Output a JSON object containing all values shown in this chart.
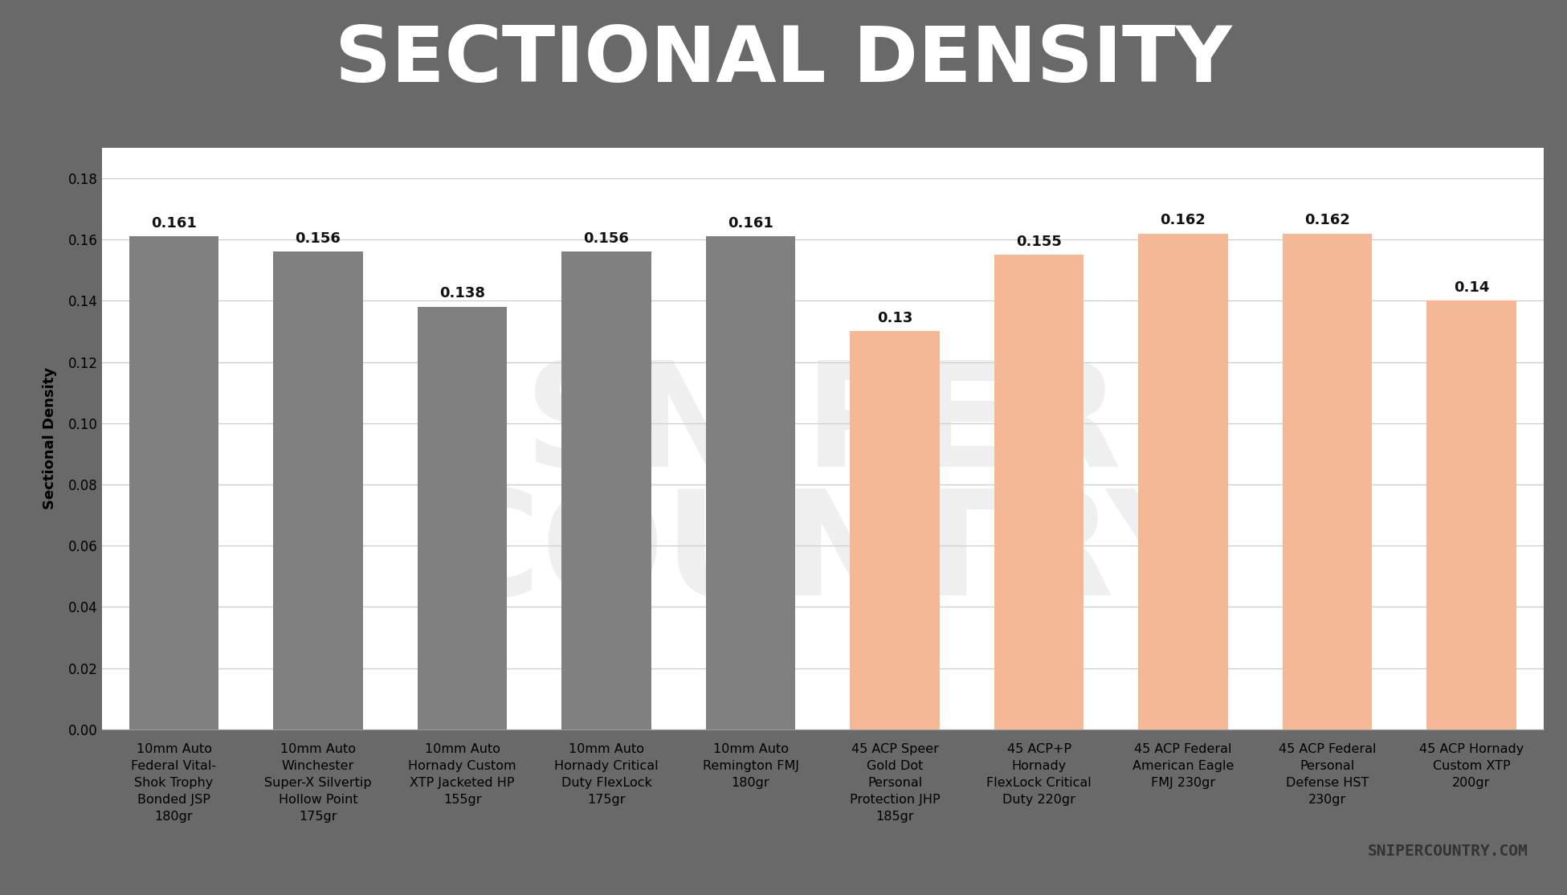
{
  "title": "SECTIONAL DENSITY",
  "title_bg_color": "#696969",
  "title_text_color": "#ffffff",
  "red_stripe_color": "#e8605a",
  "chart_bg_color": "#ffffff",
  "fig_bg_color": "#696969",
  "ylabel": "Sectional Density",
  "ylim": [
    0,
    0.19
  ],
  "yticks": [
    0,
    0.02,
    0.04,
    0.06,
    0.08,
    0.1,
    0.12,
    0.14,
    0.16,
    0.18
  ],
  "categories": [
    "10mm Auto\nFederal Vital-\nShok Trophy\nBonded JSP\n180gr",
    "10mm Auto\nWinchester\nSuper-X Silvertip\nHollow Point\n175gr",
    "10mm Auto\nHornady Custom\nXTP Jacketed HP\n155gr",
    "10mm Auto\nHornady Critical\nDuty FlexLock\n175gr",
    "10mm Auto\nRemington FMJ\n180gr",
    "45 ACP Speer\nGold Dot\nPersonal\nProtection JHP\n185gr",
    "45 ACP+P\nHornady\nFlexLock Critical\nDuty 220gr",
    "45 ACP Federal\nAmerican Eagle\nFMJ 230gr",
    "45 ACP Federal\nPersonal\nDefense HST\n230gr",
    "45 ACP Hornady\nCustom XTP\n200gr"
  ],
  "values": [
    0.161,
    0.156,
    0.138,
    0.156,
    0.161,
    0.13,
    0.155,
    0.162,
    0.162,
    0.14
  ],
  "bar_colors": [
    "#808080",
    "#808080",
    "#808080",
    "#808080",
    "#808080",
    "#f4b896",
    "#f4b896",
    "#f4b896",
    "#f4b896",
    "#f4b896"
  ],
  "value_labels": [
    "0.161",
    "0.156",
    "0.138",
    "0.156",
    "0.161",
    "0.13",
    "0.155",
    "0.162",
    "0.162",
    "0.14"
  ],
  "watermark_lines": [
    "SNIPER",
    "COUNTRY"
  ],
  "watermark_color": "#d8d8d8",
  "watermark_alpha": 0.4,
  "snipercountry_text": "SNIPERCOUNTRY.COM",
  "grid_color": "#cccccc",
  "label_fontsize": 11.5,
  "value_fontsize": 13,
  "ylabel_fontsize": 13,
  "title_fontsize": 70
}
